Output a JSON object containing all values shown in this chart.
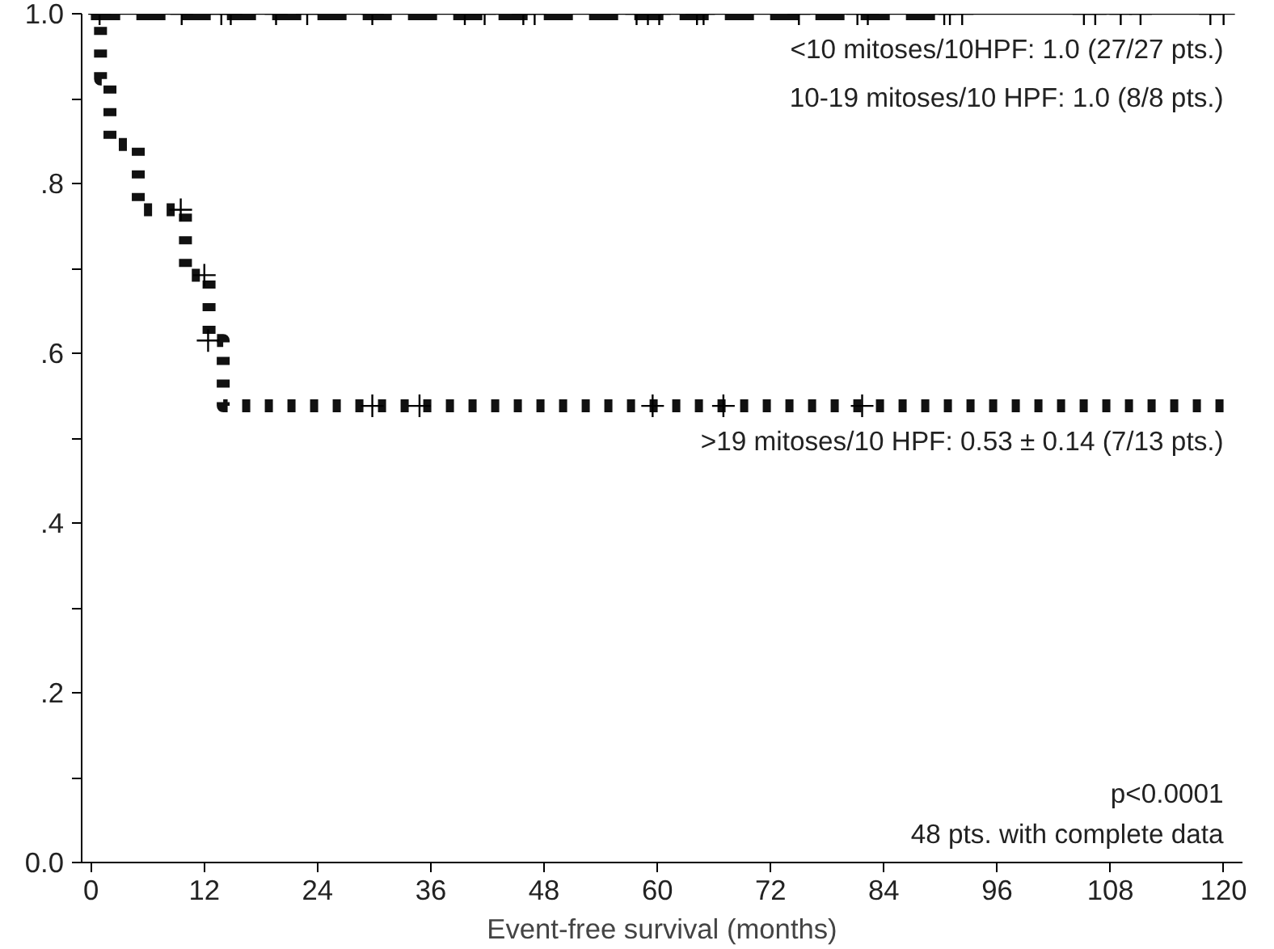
{
  "chart_data": {
    "type": "step",
    "xlabel": "Event-free survival (months)",
    "xlim": [
      -1,
      122
    ],
    "ylim": [
      0,
      1.0
    ],
    "xticks": [
      0,
      12,
      24,
      36,
      48,
      60,
      72,
      84,
      96,
      108,
      120
    ],
    "yticks": [
      {
        "value": 0,
        "label": "0.0"
      },
      {
        "value": 0.1,
        "label": null
      },
      {
        "value": 0.2,
        "label": ".2"
      },
      {
        "value": 0.3,
        "label": null
      },
      {
        "value": 0.4,
        "label": ".4"
      },
      {
        "value": 0.5,
        "label": null
      },
      {
        "value": 0.6,
        "label": ".6"
      },
      {
        "value": 0.7,
        "label": null
      },
      {
        "value": 0.8,
        "label": ".8"
      },
      {
        "value": 0.9,
        "label": null
      },
      {
        "value": 1.0,
        "label": "1.0"
      }
    ],
    "grid": false,
    "series": [
      {
        "type": "line",
        "name": "<10 mitoses/10HPF: 1.0 (27/27 pts.)",
        "line_style": "solid",
        "color": "#000000",
        "x": [
          0,
          120
        ],
        "values": [
          1.0,
          1.0
        ]
      },
      {
        "type": "line",
        "name": "10-19 mitoses/10 HPF: 1.0 (8/8 pts.)",
        "line_style": "dashed",
        "color": "#111111",
        "x": [
          0,
          90
        ],
        "values": [
          1.0,
          1.0
        ]
      },
      {
        "name": ">19 mitoses/10 HPF: 0.53 ± 0.14 (7/13 pts.)",
        "line_style": "dotted",
        "color": "#111111",
        "x": [
          0,
          1,
          2,
          5,
          10,
          12.5,
          14,
          120
        ],
        "values": [
          1.0,
          0.923,
          0.846,
          0.769,
          0.692,
          0.615,
          0.538,
          0.538
        ]
      },
      {
        "type": "scatter",
        "marker": "cross",
        "color": "#000000",
        "x": [
          0.9,
          9.6,
          13.8,
          14.8,
          19.6,
          22.9,
          29.8,
          39.6,
          41.7,
          45.8,
          47,
          57.8,
          59,
          60.2,
          64.2,
          64.9,
          75,
          81.2,
          82.3,
          90.4,
          91,
          92.3,
          105.2,
          106.4,
          109.1,
          111.2,
          118.6,
          120
        ],
        "values": [
          1,
          1,
          1,
          1,
          1,
          1,
          1,
          1,
          1,
          1,
          1,
          1,
          1,
          1,
          1,
          1,
          1,
          1,
          1,
          1,
          1,
          1,
          1,
          1,
          1,
          1,
          1,
          1
        ]
      },
      {
        "type": "scatter",
        "marker": "cross",
        "color": "#000000",
        "x": [
          9.5,
          12,
          12.4,
          29.8,
          34.8,
          59.5,
          67,
          81.7
        ],
        "values": [
          0.769,
          0.692,
          0.615,
          0.538,
          0.538,
          0.538,
          0.538,
          0.538
        ]
      }
    ],
    "annotations": [
      "p<0.0001",
      "48 pts. with complete data"
    ]
  }
}
